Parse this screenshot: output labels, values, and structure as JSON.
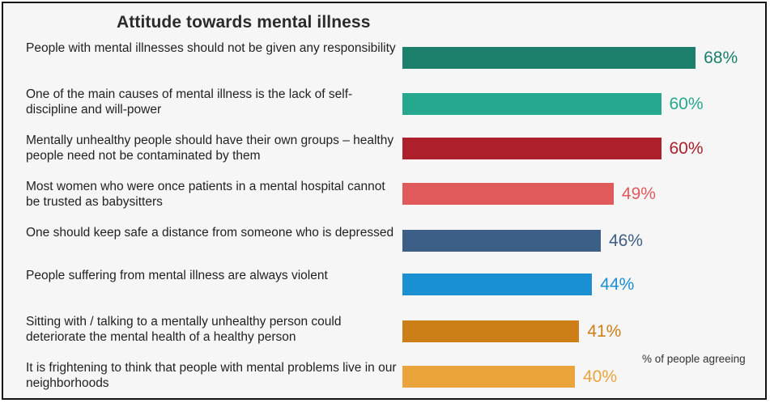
{
  "chart_data": {
    "type": "bar",
    "orientation": "horizontal",
    "title": "Attitude towards mental illness",
    "value_axis_label": "% of people agreeing",
    "xlim": [
      0,
      100
    ],
    "grid": false,
    "categories": [
      "People with mental illnesses should not be given any responsibility",
      "One of the main causes of mental illness is the lack of self-discipline and will-power",
      "Mentally unhealthy people should have their own groups – healthy people need not be contaminated by them",
      "Most women who were once patients in a mental hospital cannot be trusted as babysitters",
      "One should keep safe a distance from someone who is depressed",
      "People suffering from mental illness are always violent",
      "Sitting with / talking to a mentally unhealthy person could deteriorate the mental health of a healthy person",
      "It is frightening to think that people with  mental problems live in our neighborhoods"
    ],
    "values": [
      68,
      60,
      60,
      49,
      46,
      44,
      41,
      40
    ],
    "value_labels": [
      "68%",
      "60%",
      "60%",
      "49%",
      "46%",
      "44%",
      "41%",
      "40%"
    ],
    "colors": [
      "#1b7f6c",
      "#25a88e",
      "#ad1f2a",
      "#e05a5c",
      "#3d5e86",
      "#1a8fd2",
      "#cc7f17",
      "#eba33c"
    ]
  }
}
